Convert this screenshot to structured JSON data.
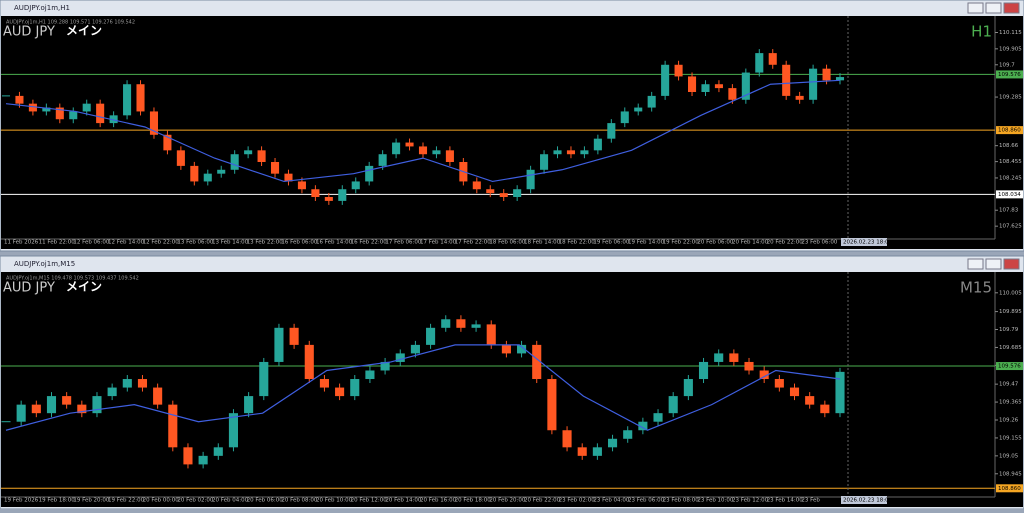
{
  "windows": [
    {
      "title": "AUDJPY.oj1m,H1",
      "info": "AUDJPY.oj1m,H1  109.288 109.571 109.276 109.542",
      "symbol": "AUD JPY",
      "label": "メイン",
      "timeframe": "H1",
      "chart_data": {
        "type": "candlestick",
        "ylim": [
          107.55,
          110.25
        ],
        "yticks": [
          110.115,
          109.905,
          109.7,
          109.285,
          108.66,
          108.455,
          108.245,
          107.83,
          107.625
        ],
        "price_lines": [
          {
            "value": 109.576,
            "label": "109.576",
            "color": "#4caf50"
          },
          {
            "value": 108.86,
            "label": "108.860",
            "color": "#f5a623"
          },
          {
            "value": 108.034,
            "label": "108.034",
            "color": "#ffffff"
          }
        ],
        "dates": [
          "11 Feb 2026",
          "11 Feb 22:00",
          "12 Feb 06:00",
          "12 Feb 14:00",
          "12 Feb 22:00",
          "13 Feb 06:00",
          "13 Feb 14:00",
          "13 Feb 22:00",
          "16 Feb 06:00",
          "16 Feb 14:00",
          "16 Feb 22:00",
          "17 Feb 06:00",
          "17 Feb 14:00",
          "17 Feb 22:00",
          "18 Feb 06:00",
          "18 Feb 14:00",
          "18 Feb 22:00",
          "19 Feb 06:00",
          "19 Feb 14:00",
          "19 Feb 22:00",
          "20 Feb 06:00",
          "20 Feb 14:00",
          "20 Feb 22:00",
          "23 Feb 06:00"
        ],
        "current_time": "2026.02.23 18:00",
        "close": [
          109.3,
          109.2,
          109.1,
          109.15,
          109.0,
          109.1,
          109.2,
          108.95,
          109.05,
          109.45,
          109.1,
          108.8,
          108.6,
          108.4,
          108.2,
          108.3,
          108.35,
          108.55,
          108.6,
          108.45,
          108.3,
          108.2,
          108.1,
          108.0,
          107.95,
          108.1,
          108.2,
          108.4,
          108.55,
          108.7,
          108.65,
          108.55,
          108.6,
          108.45,
          108.2,
          108.1,
          108.05,
          108.0,
          108.1,
          108.35,
          108.55,
          108.6,
          108.55,
          108.6,
          108.75,
          108.95,
          109.1,
          109.15,
          109.3,
          109.7,
          109.55,
          109.35,
          109.45,
          109.4,
          109.25,
          109.6,
          109.85,
          109.7,
          109.3,
          109.25,
          109.65,
          109.5,
          109.542
        ],
        "ma": [
          109.2,
          109.1,
          108.9,
          108.5,
          108.2,
          108.3,
          108.5,
          108.2,
          108.35,
          108.6,
          109.05,
          109.45,
          109.5
        ]
      }
    },
    {
      "title": "AUDJPY.oj1m,M15",
      "info": "AUDJPY.oj1m,M15  109.478 109.573 109.437 109.542",
      "symbol": "AUD JPY",
      "label": "メイン",
      "timeframe": "M15",
      "chart_data": {
        "type": "candlestick",
        "ylim": [
          108.85,
          110.08
        ],
        "yticks": [
          110.005,
          109.895,
          109.79,
          109.685,
          109.58,
          109.47,
          109.365,
          109.26,
          109.155,
          109.05,
          108.945
        ],
        "price_lines": [
          {
            "value": 109.576,
            "label": "109.576",
            "color": "#4caf50"
          },
          {
            "value": 108.86,
            "label": "108.860",
            "color": "#f5a623"
          }
        ],
        "dates": [
          "19 Feb 2026",
          "19 Feb 18:00",
          "19 Feb 20:00",
          "19 Feb 22:00",
          "20 Feb 00:00",
          "20 Feb 02:00",
          "20 Feb 04:00",
          "20 Feb 06:00",
          "20 Feb 08:00",
          "20 Feb 10:00",
          "20 Feb 12:00",
          "20 Feb 14:00",
          "20 Feb 16:00",
          "20 Feb 18:00",
          "20 Feb 20:00",
          "20 Feb 22:00",
          "23 Feb 02:00",
          "23 Feb 04:00",
          "23 Feb 06:00",
          "23 Feb 08:00",
          "23 Feb 10:00",
          "23 Feb 12:00",
          "23 Feb 14:00",
          "23 Feb"
        ],
        "current_time": "2026.02.23 18:00",
        "close": [
          109.25,
          109.35,
          109.3,
          109.4,
          109.35,
          109.3,
          109.4,
          109.45,
          109.5,
          109.45,
          109.35,
          109.1,
          109.0,
          109.05,
          109.1,
          109.3,
          109.4,
          109.6,
          109.8,
          109.7,
          109.5,
          109.45,
          109.4,
          109.5,
          109.55,
          109.6,
          109.65,
          109.7,
          109.8,
          109.85,
          109.8,
          109.82,
          109.7,
          109.65,
          109.7,
          109.5,
          109.2,
          109.1,
          109.05,
          109.1,
          109.15,
          109.2,
          109.25,
          109.3,
          109.4,
          109.5,
          109.6,
          109.65,
          109.6,
          109.55,
          109.5,
          109.45,
          109.4,
          109.35,
          109.3,
          109.542
        ],
        "ma": [
          109.2,
          109.3,
          109.35,
          109.25,
          109.3,
          109.55,
          109.6,
          109.7,
          109.7,
          109.4,
          109.2,
          109.35,
          109.55,
          109.5
        ]
      }
    }
  ]
}
